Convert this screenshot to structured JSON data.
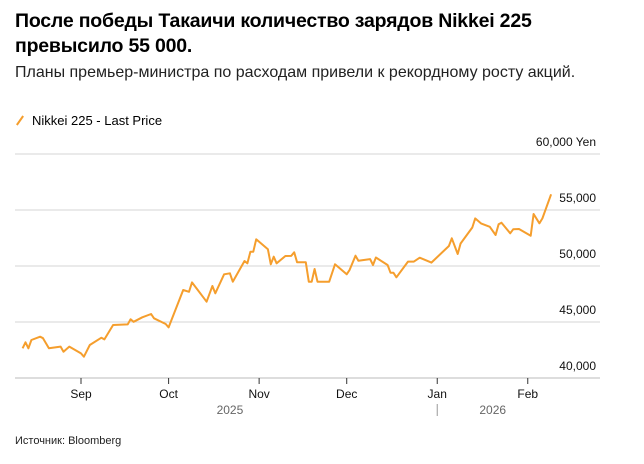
{
  "header": {
    "title": "После победы Такаичи количество зарядов Nikkei 225 превысило 55 000.",
    "subtitle": "Планы премьер-министра по расходам привели к рекордному росту акций."
  },
  "footer": {
    "source": "Источник: Bloomberg"
  },
  "chart_data": {
    "type": "line",
    "title": "После победы Такаичи количество зарядов Nikkei 225 превысило 55 000.",
    "subtitle": "Планы премьер-министра по расходам привели к рекордному росту акций.",
    "legend": {
      "position": "top-left",
      "entries": [
        "Nikkei 225 - Last Price"
      ]
    },
    "ylabel_unit": "Yen",
    "ylim": [
      40000,
      60000
    ],
    "y_ticks": [
      {
        "value": 60000,
        "label": "60,000 Yen"
      },
      {
        "value": 55000,
        "label": "55,000"
      },
      {
        "value": 50000,
        "label": "50,000"
      },
      {
        "value": 45000,
        "label": "45,000"
      },
      {
        "value": 40000,
        "label": "40,000"
      }
    ],
    "x_ticks": [
      {
        "date": "2025-09-01",
        "label": "Sep"
      },
      {
        "date": "2025-10-01",
        "label": "Oct"
      },
      {
        "date": "2025-11-01",
        "label": "Nov"
      },
      {
        "date": "2025-12-01",
        "label": "Dec"
      },
      {
        "date": "2026-01-01",
        "label": "Jan"
      },
      {
        "date": "2026-02-01",
        "label": "Feb"
      }
    ],
    "year_labels": [
      {
        "label": "2025",
        "date": "2025-10-22"
      },
      {
        "label": "2026",
        "date": "2026-01-20"
      }
    ],
    "grid": true,
    "series": [
      {
        "name": "Nikkei 225 - Last Price",
        "color": "#f59e2d",
        "points": [
          [
            "2025-08-12",
            42650
          ],
          [
            "2025-08-13",
            43190
          ],
          [
            "2025-08-14",
            42650
          ],
          [
            "2025-08-15",
            43390
          ],
          [
            "2025-08-18",
            43690
          ],
          [
            "2025-08-19",
            43550
          ],
          [
            "2025-08-21",
            42650
          ],
          [
            "2025-08-25",
            42800
          ],
          [
            "2025-08-26",
            42350
          ],
          [
            "2025-08-28",
            42800
          ],
          [
            "2025-09-01",
            42200
          ],
          [
            "2025-09-02",
            41900
          ],
          [
            "2025-09-04",
            42950
          ],
          [
            "2025-09-08",
            43600
          ],
          [
            "2025-09-09",
            43450
          ],
          [
            "2025-09-12",
            44730
          ],
          [
            "2025-09-17",
            44790
          ],
          [
            "2025-09-18",
            45240
          ],
          [
            "2025-09-19",
            45020
          ],
          [
            "2025-09-22",
            45420
          ],
          [
            "2025-09-25",
            45710
          ],
          [
            "2025-09-26",
            45330
          ],
          [
            "2025-09-30",
            44820
          ],
          [
            "2025-10-01",
            44520
          ],
          [
            "2025-10-06",
            47860
          ],
          [
            "2025-10-08",
            47700
          ],
          [
            "2025-10-09",
            48540
          ],
          [
            "2025-10-14",
            46810
          ],
          [
            "2025-10-16",
            48210
          ],
          [
            "2025-10-17",
            47560
          ],
          [
            "2025-10-20",
            49260
          ],
          [
            "2025-10-22",
            49350
          ],
          [
            "2025-10-23",
            48600
          ],
          [
            "2025-10-27",
            50450
          ],
          [
            "2025-10-28",
            50240
          ],
          [
            "2025-10-29",
            51280
          ],
          [
            "2025-10-30",
            51280
          ],
          [
            "2025-10-31",
            52380
          ],
          [
            "2025-11-04",
            51490
          ],
          [
            "2025-11-05",
            50150
          ],
          [
            "2025-11-06",
            50830
          ],
          [
            "2025-11-07",
            50240
          ],
          [
            "2025-11-10",
            50890
          ],
          [
            "2025-11-12",
            50900
          ],
          [
            "2025-11-13",
            51220
          ],
          [
            "2025-11-14",
            50330
          ],
          [
            "2025-11-17",
            50330
          ],
          [
            "2025-11-18",
            48600
          ],
          [
            "2025-11-19",
            48600
          ],
          [
            "2025-11-20",
            49730
          ],
          [
            "2025-11-21",
            48600
          ],
          [
            "2025-11-25",
            48600
          ],
          [
            "2025-11-27",
            50150
          ],
          [
            "2025-12-01",
            49260
          ],
          [
            "2025-12-02",
            49650
          ],
          [
            "2025-12-04",
            50920
          ],
          [
            "2025-12-05",
            50470
          ],
          [
            "2025-12-09",
            50620
          ],
          [
            "2025-12-10",
            50090
          ],
          [
            "2025-12-11",
            50760
          ],
          [
            "2025-12-15",
            50090
          ],
          [
            "2025-12-16",
            49400
          ],
          [
            "2025-12-17",
            49400
          ],
          [
            "2025-12-18",
            48990
          ],
          [
            "2025-12-22",
            50390
          ],
          [
            "2025-12-24",
            50390
          ],
          [
            "2025-12-26",
            50740
          ],
          [
            "2025-12-30",
            50300
          ],
          [
            "2026-01-05",
            51790
          ],
          [
            "2026-01-06",
            52470
          ],
          [
            "2026-01-08",
            51070
          ],
          [
            "2026-01-09",
            52010
          ],
          [
            "2026-01-13",
            53440
          ],
          [
            "2026-01-14",
            54250
          ],
          [
            "2026-01-16",
            53800
          ],
          [
            "2026-01-19",
            53500
          ],
          [
            "2026-01-21",
            52770
          ],
          [
            "2026-01-22",
            53720
          ],
          [
            "2026-01-23",
            53870
          ],
          [
            "2026-01-26",
            52920
          ],
          [
            "2026-01-27",
            53280
          ],
          [
            "2026-01-29",
            53300
          ],
          [
            "2026-02-02",
            52700
          ],
          [
            "2026-02-03",
            54640
          ],
          [
            "2026-02-05",
            53810
          ],
          [
            "2026-02-06",
            54250
          ],
          [
            "2026-02-09",
            56400
          ]
        ]
      }
    ]
  }
}
